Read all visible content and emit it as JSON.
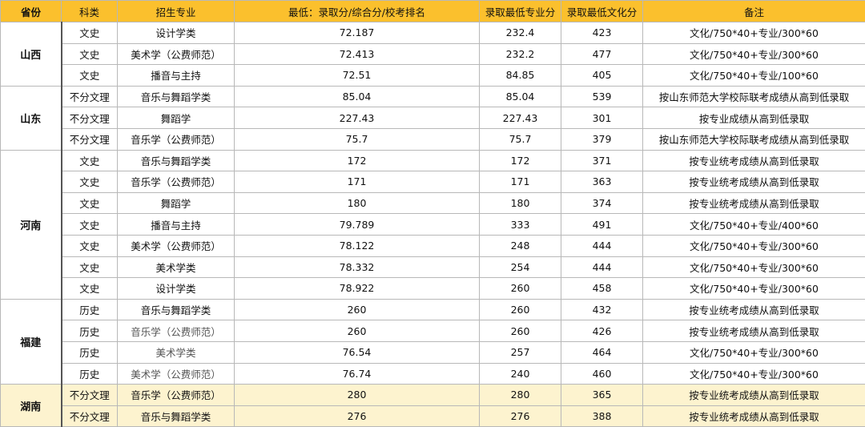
{
  "headers": {
    "province": "省份",
    "subject": "科类",
    "major": "招生专业",
    "min_score": "最低：录取分/综合分/校考排名",
    "min_major": "录取最低专业分",
    "min_culture": "录取最低文化分",
    "note": "备注"
  },
  "groups": [
    {
      "province": "山西",
      "rows": [
        {
          "subject": "文史",
          "major": "设计学类",
          "min": "72.187",
          "major_score": "232.4",
          "culture": "423",
          "note": "文化/750*40+专业/300*60"
        },
        {
          "subject": "文史",
          "major": "美术学（公费师范）",
          "min": "72.413",
          "major_score": "232.2",
          "culture": "477",
          "note": "文化/750*40+专业/300*60"
        },
        {
          "subject": "文史",
          "major": "播音与主持",
          "min": "72.51",
          "major_score": "84.85",
          "culture": "405",
          "note": "文化/750*40+专业/100*60"
        }
      ]
    },
    {
      "province": "山东",
      "rows": [
        {
          "subject": "不分文理",
          "major": "音乐与舞蹈学类",
          "min": "85.04",
          "major_score": "85.04",
          "culture": "539",
          "note": "按山东师范大学校际联考成绩从高到低录取"
        },
        {
          "subject": "不分文理",
          "major": "舞蹈学",
          "min": "227.43",
          "major_score": "227.43",
          "culture": "301",
          "note": "按专业成绩从高到低录取"
        },
        {
          "subject": "不分文理",
          "major": "音乐学（公费师范）",
          "min": "75.7",
          "major_score": "75.7",
          "culture": "379",
          "note": "按山东师范大学校际联考成绩从高到低录取"
        }
      ]
    },
    {
      "province": "河南",
      "rows": [
        {
          "subject": "文史",
          "major": "音乐与舞蹈学类",
          "min": "172",
          "major_score": "172",
          "culture": "371",
          "note": "按专业统考成绩从高到低录取"
        },
        {
          "subject": "文史",
          "major": "音乐学（公费师范）",
          "min": "171",
          "major_score": "171",
          "culture": "363",
          "note": "按专业统考成绩从高到低录取"
        },
        {
          "subject": "文史",
          "major": "舞蹈学",
          "min": "180",
          "major_score": "180",
          "culture": "374",
          "note": "按专业统考成绩从高到低录取"
        },
        {
          "subject": "文史",
          "major": "播音与主持",
          "min": "79.789",
          "major_score": "333",
          "culture": "491",
          "note": "文化/750*40+专业/400*60"
        },
        {
          "subject": "文史",
          "major": "美术学（公费师范）",
          "min": "78.122",
          "major_score": "248",
          "culture": "444",
          "note": "文化/750*40+专业/300*60"
        },
        {
          "subject": "文史",
          "major": "美术学类",
          "min": "78.332",
          "major_score": "254",
          "culture": "444",
          "note": "文化/750*40+专业/300*60"
        },
        {
          "subject": "文史",
          "major": "设计学类",
          "min": "78.922",
          "major_score": "260",
          "culture": "458",
          "note": "文化/750*40+专业/300*60"
        }
      ]
    },
    {
      "province": "福建",
      "rows": [
        {
          "subject": "历史",
          "major": "音乐与舞蹈学类",
          "min": "260",
          "major_score": "260",
          "culture": "432",
          "note": "按专业统考成绩从高到低录取"
        },
        {
          "subject": "历史",
          "major": "音乐学（公费师范）",
          "min": "260",
          "major_score": "260",
          "culture": "426",
          "note": "按专业统考成绩从高到低录取"
        },
        {
          "subject": "历史",
          "major": "美术学类",
          "min": "76.54",
          "major_score": "257",
          "culture": "464",
          "note": "文化/750*40+专业/300*60"
        },
        {
          "subject": "历史",
          "major": "美术学（公费师范）",
          "min": "76.74",
          "major_score": "240",
          "culture": "460",
          "note": "文化/750*40+专业/300*60"
        }
      ]
    },
    {
      "province": "湖南",
      "rows": [
        {
          "subject": "不分文理",
          "major": "音乐学（公费师范）",
          "min": "280",
          "major_score": "280",
          "culture": "365",
          "note": "按专业统考成绩从高到低录取"
        },
        {
          "subject": "不分文理",
          "major": "音乐与舞蹈学类",
          "min": "276",
          "major_score": "276",
          "culture": "388",
          "note": "按专业统考成绩从高到低录取"
        }
      ]
    }
  ]
}
